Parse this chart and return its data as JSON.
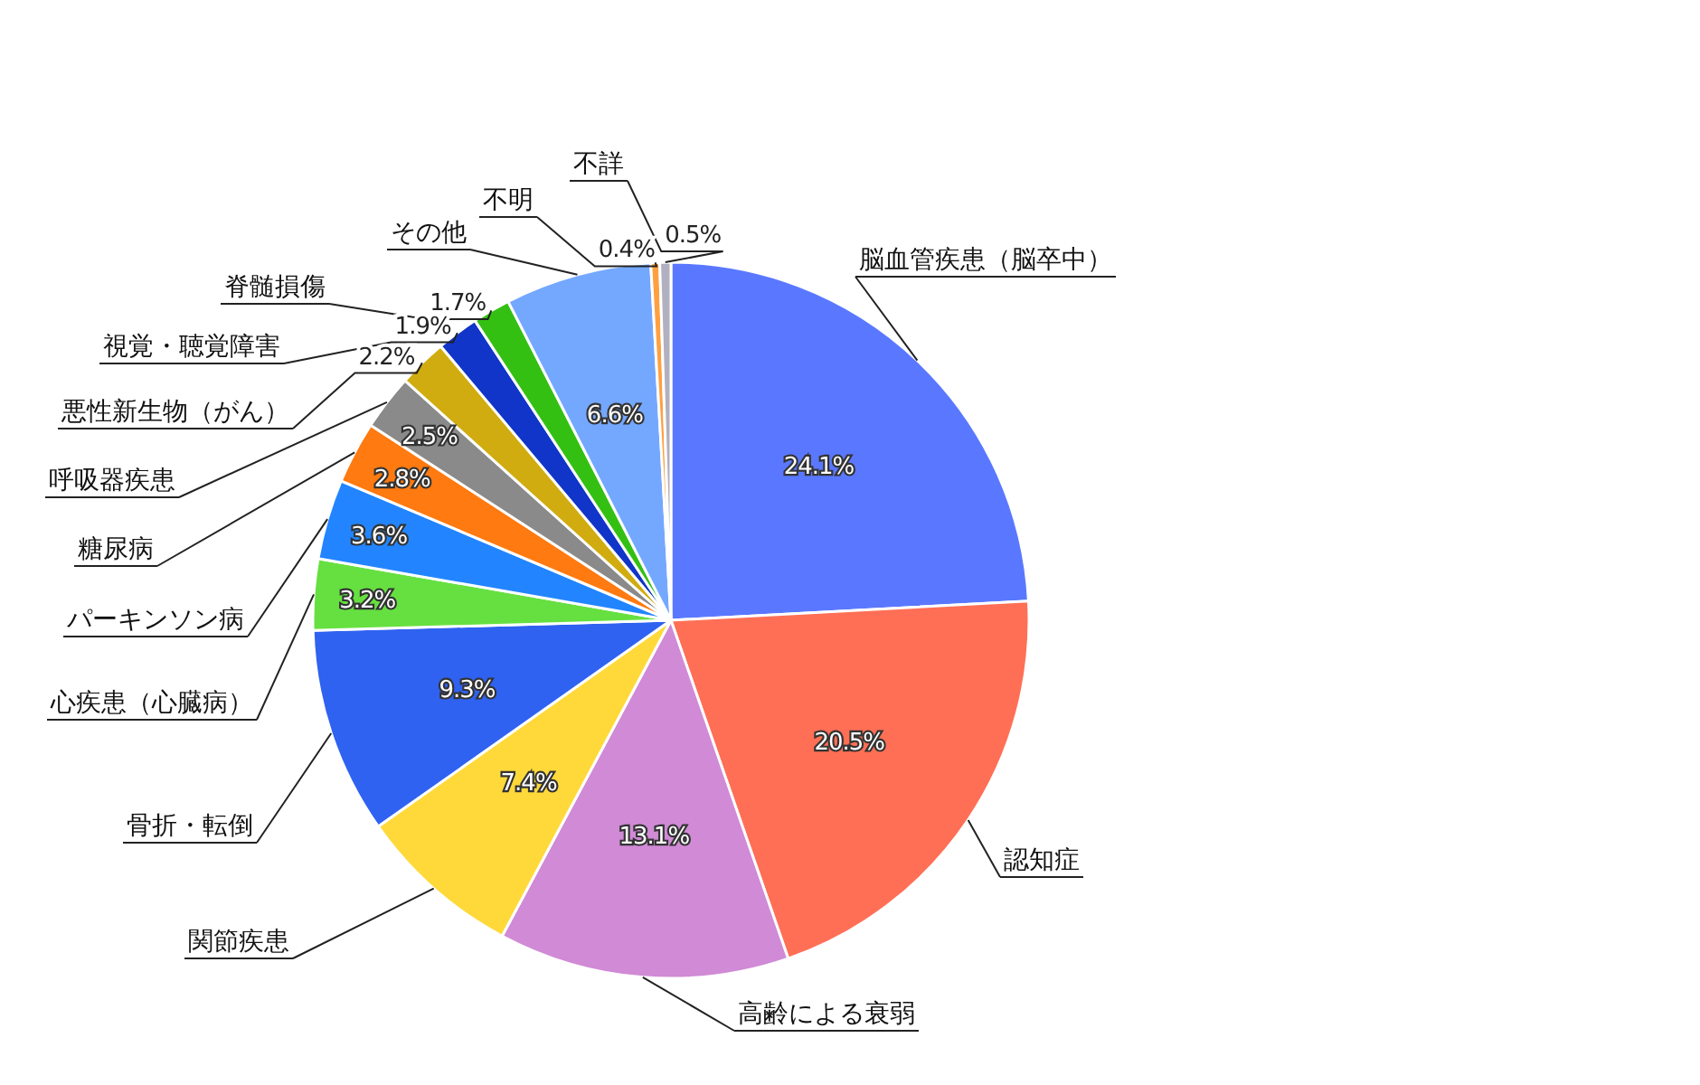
{
  "chart_data": {
    "type": "pie",
    "categories": [
      "脳血管疾患（脳卒中）",
      "認知症",
      "高齢による衰弱",
      "関節疾患",
      "骨折・転倒",
      "心疾患（心臓病）",
      "パーキンソン病",
      "糖尿病",
      "呼吸器疾患",
      "悪性新生物（がん）",
      "視覚・聴覚障害",
      "脊髄損傷",
      "その他",
      "不明",
      "不詳"
    ],
    "values": [
      24.1,
      20.5,
      13.1,
      7.4,
      9.3,
      3.2,
      3.6,
      2.8,
      2.5,
      2.2,
      1.9,
      1.7,
      6.6,
      0.4,
      0.5
    ],
    "value_labels": [
      "24.1%",
      "20.5%",
      "13.1%",
      "7.4%",
      "9.3%",
      "3.2%",
      "3.6%",
      "2.8%",
      "2.5%",
      "2.2%",
      "1.9%",
      "1.7%",
      "6.6%",
      "0.4%",
      "0.5%"
    ],
    "colors": [
      "#5a78ff",
      "#ff6f55",
      "#d08ad6",
      "#ffd93a",
      "#2f62f0",
      "#66e040",
      "#2285ff",
      "#ff7a10",
      "#8a8a8a",
      "#d0ac10",
      "#1035c8",
      "#34c012",
      "#74a8ff",
      "#ffa040",
      "#b0b0c0"
    ]
  }
}
